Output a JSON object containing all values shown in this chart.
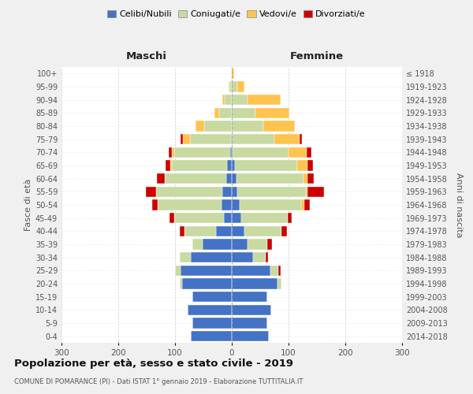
{
  "age_groups": [
    "0-4",
    "5-9",
    "10-14",
    "15-19",
    "20-24",
    "25-29",
    "30-34",
    "35-39",
    "40-44",
    "45-49",
    "50-54",
    "55-59",
    "60-64",
    "65-69",
    "70-74",
    "75-79",
    "80-84",
    "85-89",
    "90-94",
    "95-99",
    "100+"
  ],
  "birth_years": [
    "2014-2018",
    "2009-2013",
    "2004-2008",
    "1999-2003",
    "1994-1998",
    "1989-1993",
    "1984-1988",
    "1979-1983",
    "1974-1978",
    "1969-1973",
    "1964-1968",
    "1959-1963",
    "1954-1958",
    "1949-1953",
    "1944-1948",
    "1939-1943",
    "1934-1938",
    "1929-1933",
    "1924-1928",
    "1919-1923",
    "≤ 1918"
  ],
  "male": {
    "celibi": [
      72,
      70,
      78,
      70,
      88,
      90,
      72,
      52,
      28,
      14,
      18,
      16,
      10,
      8,
      3,
      2,
      0,
      0,
      0,
      0,
      0
    ],
    "coniugati": [
      0,
      0,
      0,
      0,
      4,
      10,
      20,
      18,
      55,
      88,
      112,
      118,
      108,
      98,
      98,
      72,
      48,
      22,
      12,
      4,
      0
    ],
    "vedovi": [
      0,
      0,
      0,
      0,
      0,
      0,
      0,
      0,
      0,
      0,
      0,
      0,
      0,
      2,
      4,
      12,
      16,
      8,
      4,
      2,
      0
    ],
    "divorziati": [
      0,
      0,
      0,
      0,
      0,
      0,
      0,
      0,
      8,
      8,
      10,
      18,
      14,
      8,
      6,
      4,
      0,
      0,
      0,
      0,
      0
    ]
  },
  "female": {
    "nubili": [
      65,
      62,
      70,
      62,
      80,
      68,
      38,
      28,
      22,
      16,
      14,
      10,
      8,
      5,
      2,
      0,
      0,
      0,
      0,
      0,
      0
    ],
    "coniugate": [
      0,
      0,
      0,
      0,
      8,
      14,
      22,
      35,
      65,
      82,
      108,
      120,
      118,
      110,
      98,
      75,
      55,
      42,
      28,
      10,
      0
    ],
    "vedove": [
      0,
      0,
      0,
      0,
      0,
      0,
      0,
      0,
      0,
      0,
      6,
      4,
      8,
      18,
      32,
      45,
      56,
      60,
      58,
      12,
      4
    ],
    "divorziate": [
      0,
      0,
      0,
      0,
      0,
      4,
      4,
      8,
      10,
      8,
      10,
      28,
      10,
      10,
      8,
      4,
      0,
      0,
      0,
      0,
      0
    ]
  },
  "colors": {
    "celibi_nubili": "#4472c4",
    "coniugati": "#c8d9a2",
    "vedovi": "#ffc44f",
    "divorziati": "#cc0000"
  },
  "title": "Popolazione per età, sesso e stato civile - 2019",
  "subtitle": "COMUNE DI POMARANCE (PI) - Dati ISTAT 1° gennaio 2019 - Elaborazione TUTTITALIA.IT",
  "xlabel_left": "Maschi",
  "xlabel_right": "Femmine",
  "ylabel_left": "Fasce di età",
  "ylabel_right": "Anni di nascita",
  "xlim": 300,
  "background_color": "#f0f0f0",
  "plot_background": "#ffffff",
  "legend_labels": [
    "Celibi/Nubili",
    "Coniugati/e",
    "Vedovi/e",
    "Divorziati/e"
  ]
}
